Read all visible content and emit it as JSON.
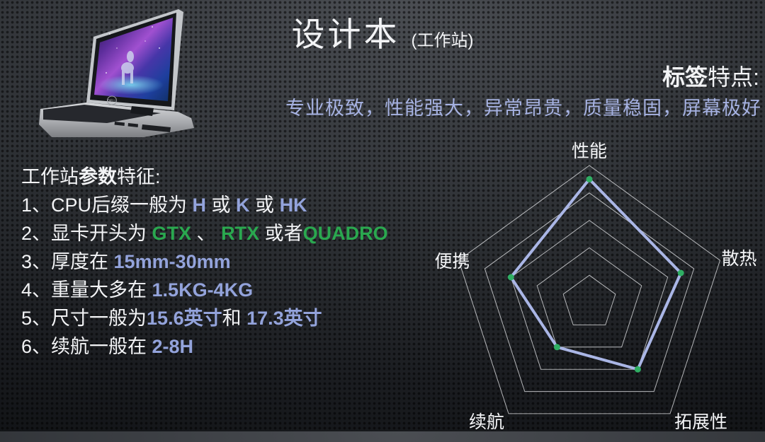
{
  "header": {
    "title": "设计本",
    "subtitle": "(工作站)"
  },
  "tag": {
    "heading_bold": "标签",
    "heading_rest": "特点:",
    "tagline": "专业极致，性能强大，异常昂贵，质量稳固，屏幕极好"
  },
  "specs": {
    "heading": [
      {
        "t": "工作站",
        "s": "w"
      },
      {
        "t": "参数",
        "s": "wb"
      },
      {
        "t": "特征:",
        "s": "w"
      }
    ],
    "items": [
      [
        {
          "t": "1、CPU后缀一般为 ",
          "s": "w"
        },
        {
          "t": "H",
          "s": "b"
        },
        {
          "t": " 或 ",
          "s": "w"
        },
        {
          "t": "K",
          "s": "b"
        },
        {
          "t": " 或 ",
          "s": "w"
        },
        {
          "t": "HK",
          "s": "b"
        }
      ],
      [
        {
          "t": "2、显卡开头为 ",
          "s": "w"
        },
        {
          "t": "GTX",
          "s": "g"
        },
        {
          "t": " 、 ",
          "s": "w"
        },
        {
          "t": "RTX",
          "s": "g"
        },
        {
          "t": " 或者",
          "s": "w"
        },
        {
          "t": "QUADRO",
          "s": "g"
        }
      ],
      [
        {
          "t": "3、厚度在 ",
          "s": "w"
        },
        {
          "t": "15mm-30mm",
          "s": "b"
        }
      ],
      [
        {
          "t": "4、重量大多在 ",
          "s": "w"
        },
        {
          "t": "1.5KG-4KG",
          "s": "b"
        }
      ],
      [
        {
          "t": "5、尺寸一般为",
          "s": "w"
        },
        {
          "t": "15.6英寸",
          "s": "b"
        },
        {
          "t": "和 ",
          "s": "w"
        },
        {
          "t": "17.3英寸",
          "s": "b"
        }
      ],
      [
        {
          "t": "6、续航一般在 ",
          "s": "w"
        },
        {
          "t": "2-8H",
          "s": "b"
        }
      ]
    ]
  },
  "laptop": {
    "logo": "DELL"
  },
  "chart_data": {
    "type": "radar",
    "categories": [
      "性能",
      "散热",
      "拓展性",
      "续航",
      "便携"
    ],
    "values": [
      4.5,
      3.5,
      3,
      2,
      3
    ],
    "max": 5,
    "rings": 5,
    "grid_shape": "pentagon",
    "grid_on": true,
    "legend_position": "none",
    "title": "",
    "line_color": "#aab6e6",
    "point_color": "#2fae63",
    "grid_color": "#dcdde0",
    "label_color": "#f5f6f8",
    "label_font_size": 25
  },
  "colors": {
    "text-white": "#f2f3f5",
    "accent-blue": "#93a3db",
    "accent-blue-light": "#a6b2e2",
    "accent-green": "#2aa84f"
  }
}
